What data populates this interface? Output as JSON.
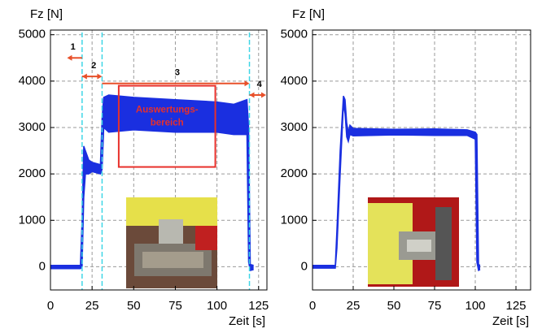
{
  "chart_data": [
    {
      "type": "line",
      "ylabel": "Fz [N]",
      "xlabel": "Zeit [s]",
      "xlim": [
        0,
        130
      ],
      "ylim": [
        -500,
        5100
      ],
      "xticks": [
        0,
        25,
        50,
        75,
        100,
        125
      ],
      "yticks": [
        0,
        1000,
        2000,
        3000,
        4000,
        5000
      ],
      "grid": true,
      "color": "#1a2fe0",
      "x": [
        0,
        18,
        19,
        20,
        21,
        23,
        25,
        30,
        31,
        32,
        35,
        50,
        75,
        100,
        110,
        118,
        119,
        120,
        122
      ],
      "values": [
        30,
        30,
        1000,
        2600,
        2500,
        2300,
        2250,
        2200,
        3200,
        3650,
        3700,
        3650,
        3600,
        3550,
        3500,
        3600,
        3000,
        50,
        30
      ],
      "lower": [
        -40,
        -40,
        0,
        1500,
        2000,
        2000,
        2050,
        2000,
        2100,
        3000,
        2900,
        2950,
        2900,
        2900,
        2850,
        2850,
        100,
        -80,
        -60
      ],
      "markers": [
        19,
        31,
        119.5
      ],
      "marker_color": "#3fd6e6",
      "phases": [
        {
          "label": "1",
          "from": 19,
          "to": 10,
          "y": 4500
        },
        {
          "label": "2",
          "from": 19,
          "to": 31,
          "y": 4100
        },
        {
          "label": "3",
          "from": 31,
          "to": 119.5,
          "y": 3950
        },
        {
          "label": "4",
          "from": 119.5,
          "to": 129.5,
          "y": 3700
        }
      ],
      "phase_color": "#e8502a",
      "highlight": {
        "lines": [
          "Auswertungs-",
          "bereich"
        ],
        "x": [
          41,
          99
        ],
        "y": [
          2150,
          3900
        ],
        "color": "#e8302a"
      }
    },
    {
      "type": "line",
      "ylabel": "Fz [N]",
      "xlabel": "Zeit [s]",
      "xlim": [
        0,
        134
      ],
      "ylim": [
        -500,
        5100
      ],
      "xticks": [
        0,
        25,
        50,
        75,
        100,
        125
      ],
      "yticks": [
        0,
        1000,
        2000,
        3000,
        4000,
        5000
      ],
      "grid": true,
      "color": "#1a2fe0",
      "x": [
        0,
        14,
        15,
        17,
        19,
        20,
        21,
        22,
        23,
        25,
        50,
        75,
        95,
        100,
        101,
        102,
        103
      ],
      "values": [
        30,
        30,
        800,
        2500,
        3680,
        3600,
        3100,
        2900,
        3050,
        2980,
        2960,
        2970,
        2950,
        2900,
        2850,
        50,
        30
      ],
      "lower": [
        -30,
        -30,
        400,
        2000,
        3500,
        3300,
        2800,
        2700,
        2850,
        2820,
        2840,
        2830,
        2830,
        2750,
        100,
        -80,
        -60
      ]
    }
  ]
}
